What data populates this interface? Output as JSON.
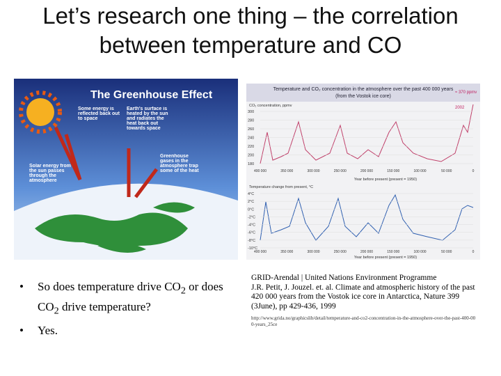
{
  "title": {
    "text": "Let’s research one thing – the correlation between temperature and CO"
  },
  "greenhouse": {
    "title": "The Greenhouse Effect",
    "reflected": "Some energy is reflected back out to space",
    "surface": "Earth's surface is heated by the sun and radiates the heat back out towards space",
    "gases": "Greenhouse gases in the atmosphere trap some of the heat",
    "solar": "Solar energy from the sun passes through the atmosphere"
  },
  "vostok": {
    "title": "Temperature and CO₂ concentration in the atmosphere over the past 400 000 years",
    "subtitle": "(from the Vostok ice core)",
    "co2_label": "CO₂ concentration, ppmv",
    "current": "≈ 370 ppmv",
    "year": "2002",
    "x_label": "Year before present (present = 1950)",
    "temp_label": "Temperature change from present, °C",
    "co2_ticks": [
      "300",
      "280",
      "260",
      "240",
      "220",
      "200",
      "180"
    ],
    "temp_ticks": [
      "4°C",
      "2°C",
      "0°C",
      "-2°C",
      "-4°C",
      "-6°C",
      "-8°C",
      "-10°C"
    ],
    "x_ticks": [
      "400 000",
      "350 000",
      "300 000",
      "250 000",
      "200 000",
      "150 000",
      "100 000",
      "50 000",
      "0"
    ]
  },
  "bullets": [
    {
      "parts": [
        "So does temperature drive CO",
        "2",
        " or does CO",
        "2",
        " drive temperature?"
      ]
    },
    {
      "parts": [
        "Yes."
      ]
    }
  ],
  "citation": {
    "org": "GRID-Arendal | United Nations Environment Programme",
    "ref": "J.R. Petit, J. Jouzel. et. al. Climate and atmospheric history of the past 420 000 years from the Vostok ice core in Antarctica, Nature 399 (3June), pp 429-436, 1999",
    "url": "http://www.grida.no/graphicslib/detail/temperature-and-co2-concentration-in-the-atmosphere-over-the-past-400-000-years_25ce"
  }
}
